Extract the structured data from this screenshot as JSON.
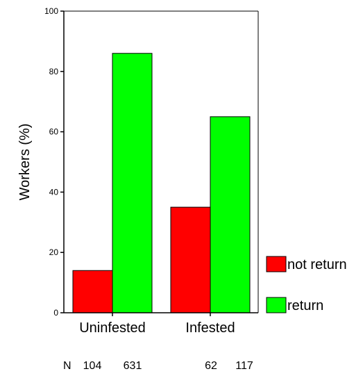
{
  "chart_data": {
    "type": "bar",
    "categories": [
      "Uninfested",
      "Infested"
    ],
    "series": [
      {
        "name": "not return",
        "values": [
          14,
          35
        ],
        "color": "#ff0000"
      },
      {
        "name": "return",
        "values": [
          86,
          65
        ],
        "color": "#00ff00"
      }
    ],
    "ylabel": "Workers (%)",
    "ylim": [
      0,
      100
    ],
    "yticks": [
      0,
      20,
      40,
      60,
      80,
      100
    ],
    "grid": false,
    "legend": "right",
    "n_prefix": "N",
    "n_values": [
      [
        "104",
        "631"
      ],
      [
        "62",
        "117"
      ]
    ]
  }
}
